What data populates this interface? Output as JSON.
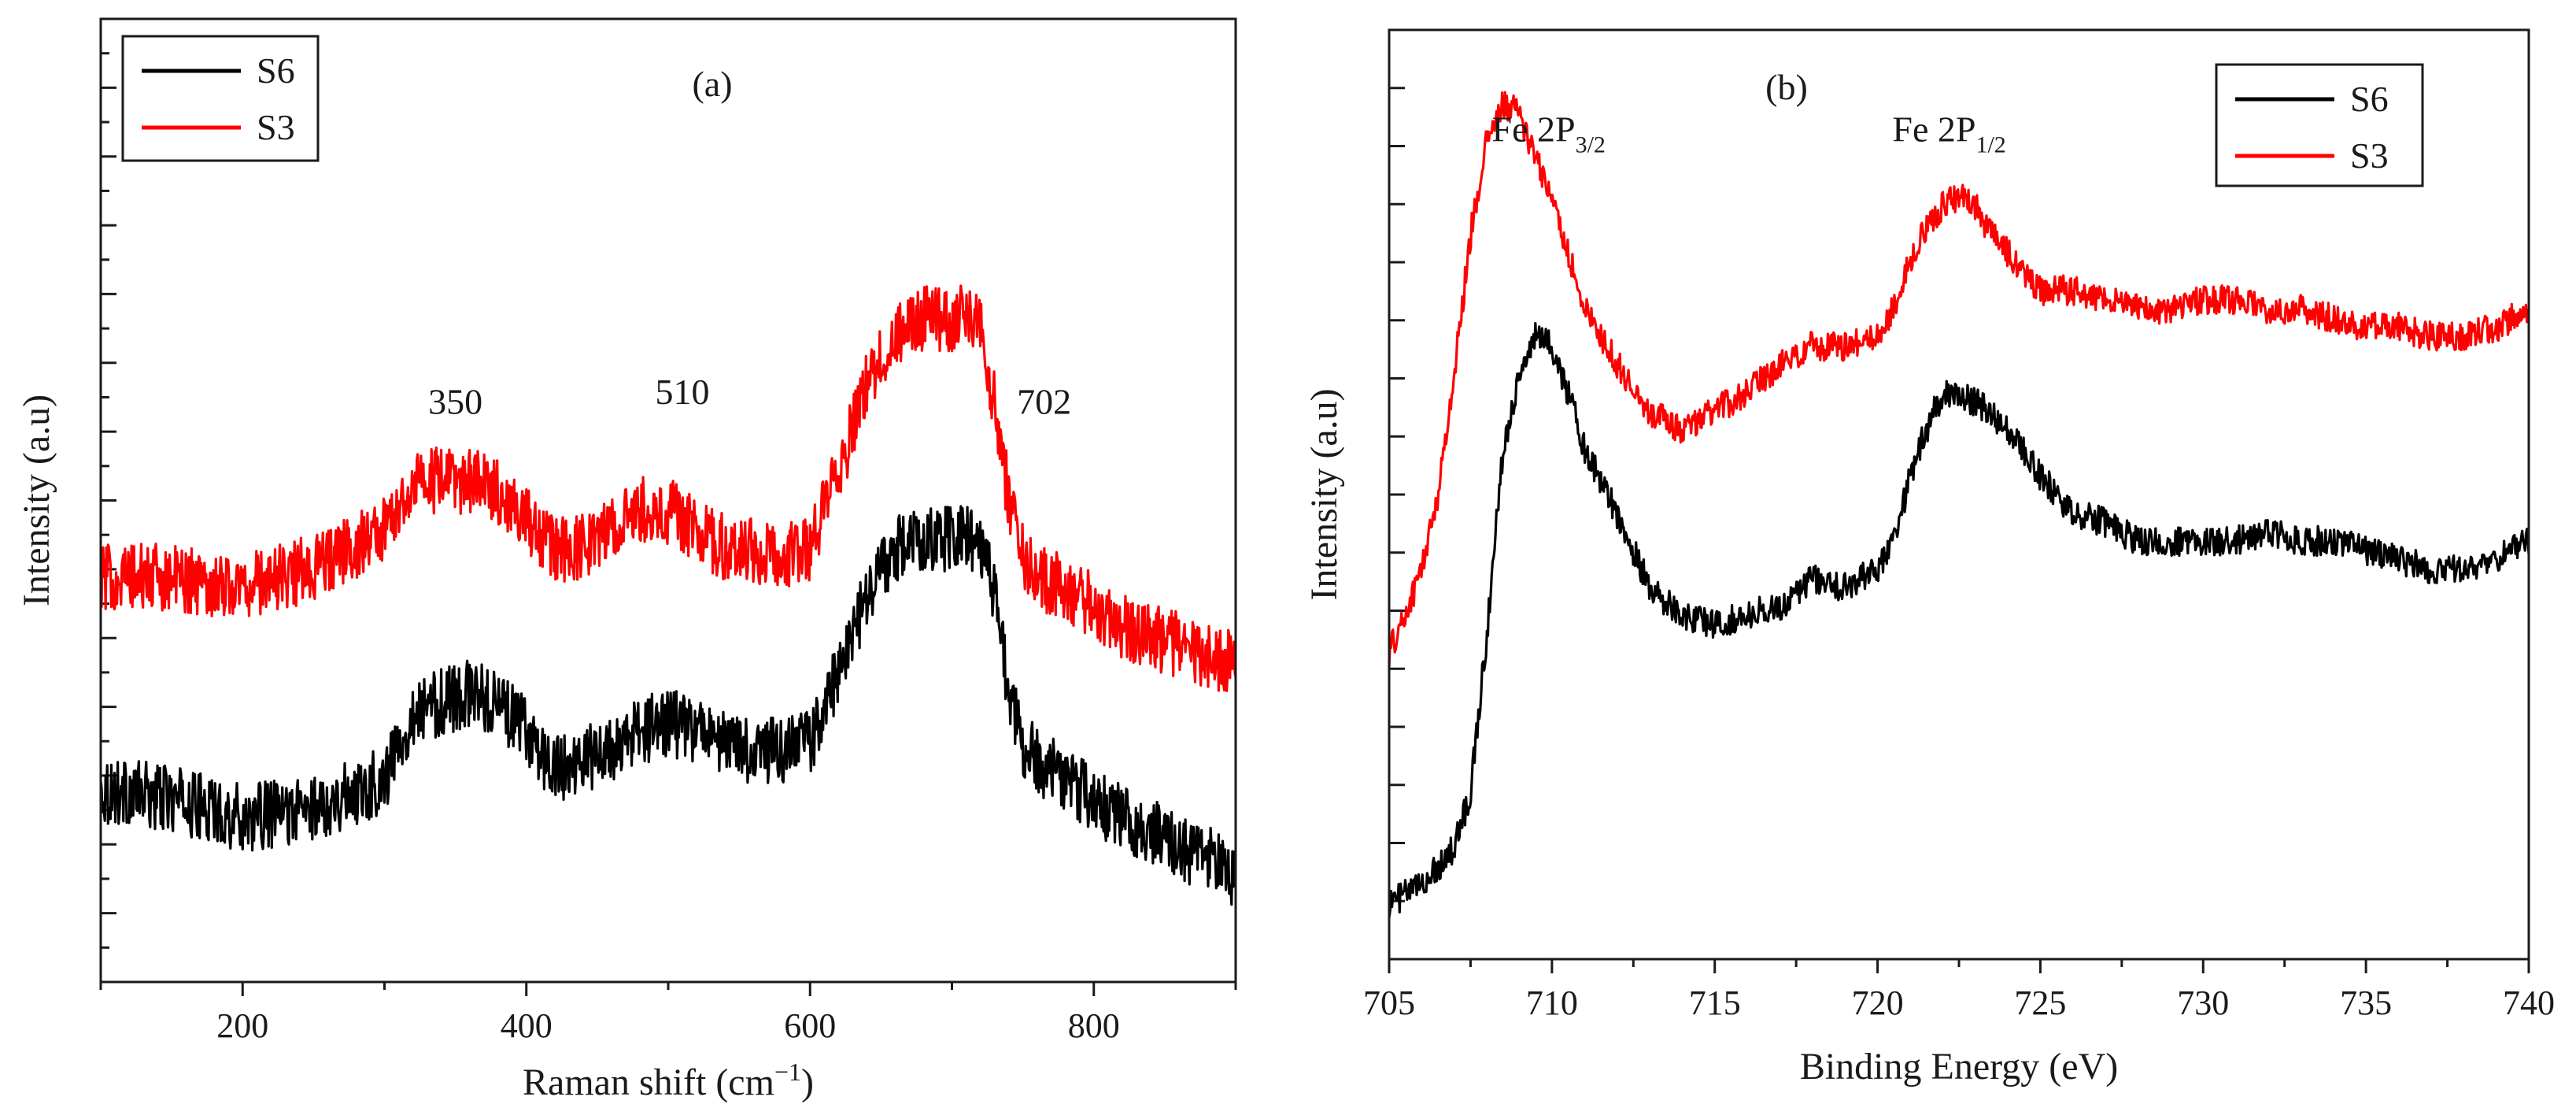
{
  "chart_data": [
    {
      "type": "line",
      "panel_label": "(a)",
      "xlabel": "Raman shift (cm",
      "xlabel_sup": "−1",
      "xlabel_suffix": ")",
      "ylabel": "Intensity (a.u)",
      "xlim": [
        100,
        900
      ],
      "ylim": [
        0,
        100
      ],
      "xticks": [
        200,
        400,
        600,
        800
      ],
      "xtick_labels": [
        "200",
        "400",
        "600",
        "800"
      ],
      "legend": {
        "placement": "top-left",
        "entries": [
          "S6",
          "S3"
        ]
      },
      "annotations": [
        {
          "text": "350",
          "x": 350,
          "y": 59
        },
        {
          "text": "510",
          "x": 510,
          "y": 60
        },
        {
          "text": "702",
          "x": 765,
          "y": 59
        }
      ],
      "series": [
        {
          "name": "S6",
          "color": "#000000",
          "x": [
            100,
            150,
            200,
            250,
            300,
            320,
            340,
            360,
            380,
            400,
            420,
            440,
            460,
            480,
            500,
            520,
            540,
            560,
            580,
            600,
            620,
            640,
            660,
            680,
            700,
            720,
            730,
            740,
            750,
            760,
            780,
            800,
            820,
            840,
            860,
            880,
            900
          ],
          "y": [
            20,
            19,
            17,
            18,
            21,
            28,
            29,
            30,
            29,
            26,
            22,
            23,
            24,
            26,
            27,
            26,
            25,
            24,
            24,
            25,
            32,
            40,
            45,
            46,
            46,
            46,
            40,
            30,
            25,
            23,
            21,
            19,
            17,
            16,
            14,
            13,
            11
          ],
          "noise": 3.5
        },
        {
          "name": "S3",
          "color": "#ff0000",
          "x": [
            100,
            150,
            200,
            250,
            300,
            320,
            340,
            360,
            380,
            400,
            420,
            440,
            460,
            480,
            500,
            520,
            540,
            560,
            580,
            600,
            620,
            640,
            660,
            680,
            700,
            720,
            730,
            740,
            750,
            760,
            780,
            800,
            820,
            840,
            860,
            880,
            900
          ],
          "y": [
            42,
            42,
            41,
            43,
            47,
            52,
            52,
            52,
            51,
            48,
            45,
            45,
            47,
            49,
            49,
            47,
            45,
            45,
            44,
            45,
            53,
            62,
            67,
            69,
            69,
            69,
            60,
            50,
            44,
            42,
            41,
            39,
            37,
            36,
            35,
            34,
            33
          ],
          "noise": 3.5
        }
      ]
    },
    {
      "type": "line",
      "panel_label": "(b)",
      "xlabel": "Binding Energy (eV)",
      "ylabel": "Intensity (a.u)",
      "xlim": [
        705,
        740
      ],
      "ylim": [
        0,
        100
      ],
      "xticks": [
        705,
        710,
        715,
        720,
        725,
        730,
        735,
        740
      ],
      "xtick_labels": [
        "705",
        "710",
        "715",
        "720",
        "725",
        "730",
        "735",
        "740"
      ],
      "legend": {
        "placement": "top-right",
        "entries": [
          "S6",
          "S3"
        ]
      },
      "annotations": [
        {
          "text": "Fe 2P",
          "sub": "3/2",
          "x": 709.9,
          "y": 88
        },
        {
          "text": "Fe 2P",
          "sub": "1/2",
          "x": 722.2,
          "y": 88
        }
      ],
      "series": [
        {
          "name": "S6",
          "color": "#000000",
          "x": [
            705,
            706,
            707,
            707.5,
            708,
            708.5,
            709,
            709.5,
            710,
            710.5,
            711,
            712,
            713,
            714,
            715,
            716,
            717,
            718,
            719,
            720,
            720.5,
            721,
            721.5,
            722,
            723,
            724,
            725,
            726,
            727,
            728,
            729,
            730,
            731,
            732,
            733,
            734,
            735,
            736,
            737,
            738,
            739,
            740
          ],
          "y": [
            6,
            8,
            12,
            18,
            35,
            55,
            63,
            67,
            66,
            61,
            55,
            48,
            40,
            37,
            36,
            37,
            38,
            41,
            40,
            42,
            45,
            52,
            57,
            61,
            60,
            57,
            52,
            48,
            47,
            45,
            45,
            45,
            45,
            46,
            45,
            45,
            44,
            43,
            42,
            42,
            43,
            45
          ],
          "noise": 1.6
        },
        {
          "name": "S3",
          "color": "#ff0000",
          "x": [
            705,
            705.5,
            706,
            706.5,
            707,
            707.5,
            708,
            708.5,
            709,
            709.5,
            710,
            710.5,
            711,
            712,
            713,
            714,
            715,
            716,
            717,
            718,
            719,
            720,
            720.5,
            721,
            721.5,
            722,
            722.5,
            723,
            723.5,
            724,
            725,
            726,
            727,
            728,
            729,
            730,
            731,
            732,
            733,
            734,
            735,
            736,
            737,
            738,
            739,
            740
          ],
          "y": [
            33,
            37,
            42,
            50,
            63,
            78,
            88,
            92,
            91,
            86,
            82,
            76,
            70,
            64,
            59,
            57,
            59,
            61,
            64,
            66,
            66,
            67,
            70,
            75,
            79,
            81,
            82,
            81,
            78,
            76,
            72,
            72,
            71,
            70,
            70,
            71,
            71,
            70,
            70,
            69,
            68,
            68,
            67,
            67,
            68,
            70
          ],
          "noise": 1.6
        }
      ]
    }
  ]
}
